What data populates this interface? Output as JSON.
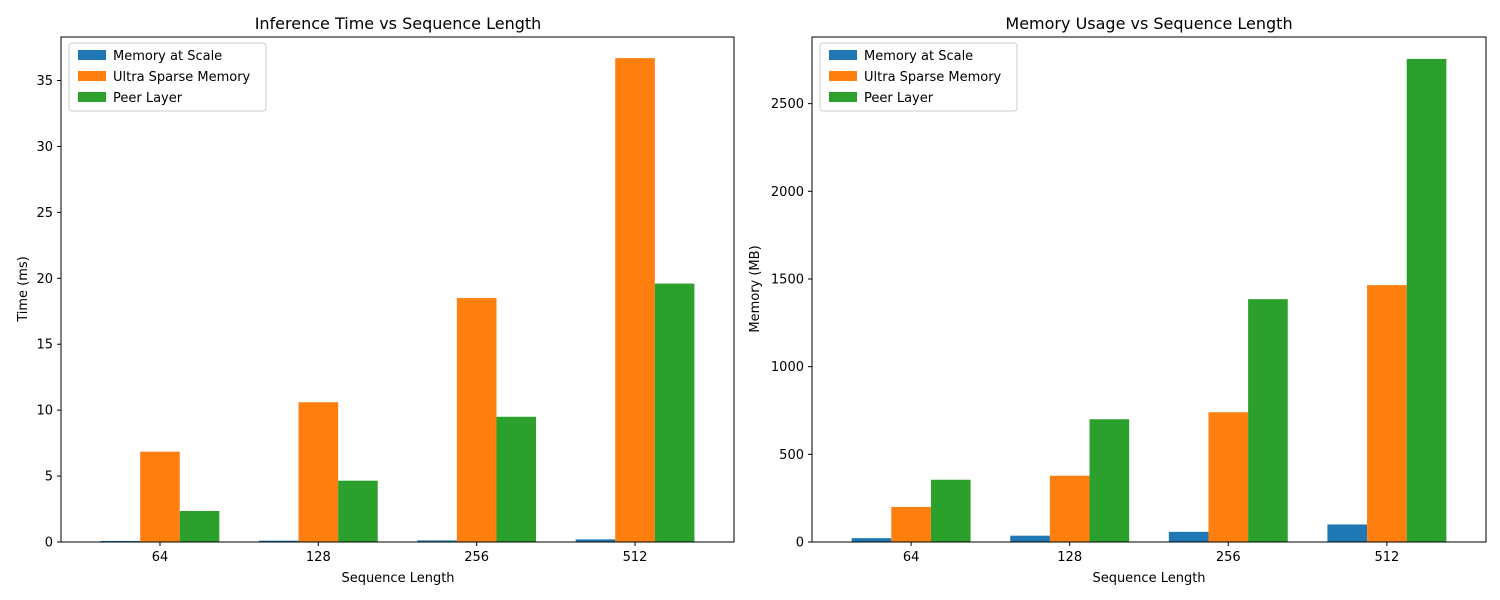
{
  "colors": {
    "series": [
      "#1f77b4",
      "#ff7f0e",
      "#2ca02c"
    ],
    "axis": "#000000",
    "legend_border": "#cccccc",
    "background": "#ffffff"
  },
  "chart_data": [
    {
      "type": "bar",
      "title": "Inference Time vs Sequence Length",
      "xlabel": "Sequence Length",
      "ylabel": "Time (ms)",
      "categories": [
        "64",
        "128",
        "256",
        "512"
      ],
      "ylim": [
        0,
        38.3
      ],
      "yticks": [
        0,
        5,
        10,
        15,
        20,
        25,
        30,
        35
      ],
      "grid": false,
      "legend_position": "top-left",
      "series": [
        {
          "name": "Memory at Scale",
          "values": [
            0.08,
            0.1,
            0.12,
            0.2
          ]
        },
        {
          "name": "Ultra Sparse Memory",
          "values": [
            6.85,
            10.6,
            18.5,
            36.7
          ]
        },
        {
          "name": "Peer Layer",
          "values": [
            2.35,
            4.65,
            9.5,
            19.6
          ]
        }
      ]
    },
    {
      "type": "bar",
      "title": "Memory Usage vs Sequence Length",
      "xlabel": "Sequence Length",
      "ylabel": "Memory (MB)",
      "categories": [
        "64",
        "128",
        "256",
        "512"
      ],
      "ylim": [
        0,
        2880
      ],
      "yticks": [
        0,
        500,
        1000,
        1500,
        2000,
        2500
      ],
      "grid": false,
      "legend_position": "top-left",
      "series": [
        {
          "name": "Memory at Scale",
          "values": [
            22,
            36,
            58,
            100
          ]
        },
        {
          "name": "Ultra Sparse Memory",
          "values": [
            200,
            378,
            740,
            1465
          ]
        },
        {
          "name": "Peer Layer",
          "values": [
            355,
            700,
            1385,
            2755
          ]
        }
      ]
    }
  ]
}
